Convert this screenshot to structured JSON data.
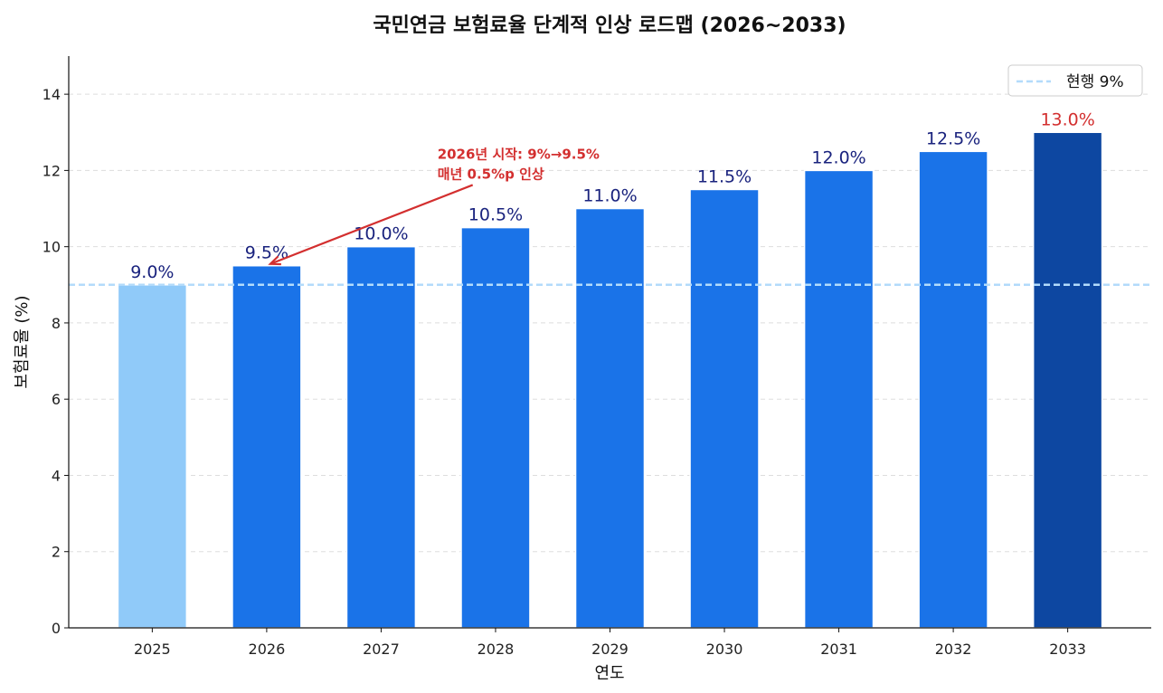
{
  "chart_data": {
    "type": "bar",
    "title": "국민연금 보험료율 단계적 인상 로드맵 (2026~2033)",
    "xlabel": "연도",
    "ylabel": "보험료율 (%)",
    "categories": [
      "2025",
      "2026",
      "2027",
      "2028",
      "2029",
      "2030",
      "2031",
      "2032",
      "2033"
    ],
    "values": [
      9.0,
      9.5,
      10.0,
      10.5,
      11.0,
      11.5,
      12.0,
      12.5,
      13.0
    ],
    "value_labels": [
      "9.0%",
      "9.5%",
      "10.0%",
      "10.5%",
      "11.0%",
      "11.5%",
      "12.0%",
      "12.5%",
      "13.0%"
    ],
    "bar_colors": [
      "#90CAF9",
      "#1A73E8",
      "#1A73E8",
      "#1A73E8",
      "#1A73E8",
      "#1A73E8",
      "#1A73E8",
      "#1A73E8",
      "#0D47A1"
    ],
    "label_colors": [
      "#1A237E",
      "#1A237E",
      "#1A237E",
      "#1A237E",
      "#1A237E",
      "#1A237E",
      "#1A237E",
      "#1A237E",
      "#D32F2F"
    ],
    "ylim": [
      0,
      15
    ],
    "yticks": [
      0,
      2,
      4,
      6,
      8,
      10,
      12,
      14
    ],
    "grid": "y, dashed",
    "reference_line": {
      "y": 9,
      "label": "현행 9%",
      "color": "#B3DBFB",
      "style": "dashed"
    },
    "legend": {
      "placement": "top-right"
    },
    "annotation": {
      "lines": [
        "2026년 시작: 9%→9.5%",
        "매년 0.5%p 인상"
      ],
      "color": "#D32F2F",
      "xy": [
        1,
        9.5
      ],
      "xytext": [
        2.5,
        12.45
      ]
    }
  }
}
